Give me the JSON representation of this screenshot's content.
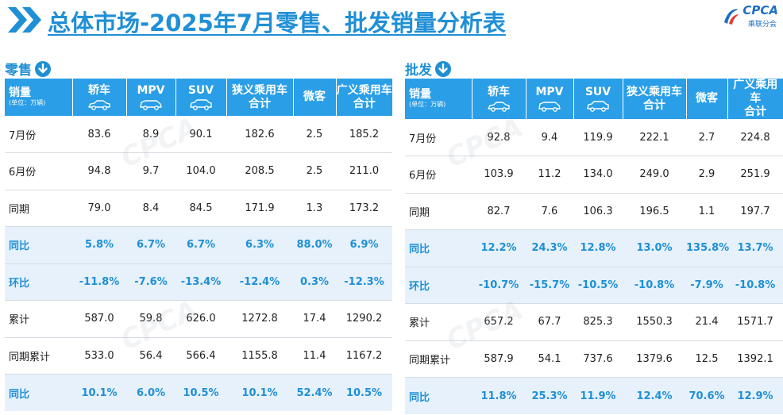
{
  "header": {
    "title": "总体市场-2025年7月零售、批发销量分析表",
    "logo_brand": "CPCA",
    "logo_sub": "乘联分会"
  },
  "colors": {
    "accent": "#1f8fd6",
    "header_bg": "#2a9ee6",
    "highlight_row_bg": "#e6f1fb"
  },
  "retail": {
    "label": "零售",
    "columns": [
      "销量",
      "轿车",
      "MPV",
      "SUV",
      "狭义乘用车合计",
      "微客",
      "广义乘用车合计"
    ],
    "col_lines": [
      [
        "销量"
      ],
      [
        "轿车"
      ],
      [
        "MPV"
      ],
      [
        "SUV"
      ],
      [
        "狭义乘用车",
        "合计"
      ],
      [
        "微客"
      ],
      [
        "广义乘用车",
        "合计"
      ]
    ],
    "unit": "(单位：万辆)",
    "rows": [
      {
        "label": "7月份",
        "values": [
          "83.6",
          "8.9",
          "90.1",
          "182.6",
          "2.5",
          "185.2"
        ],
        "highlight": false
      },
      {
        "label": "6月份",
        "values": [
          "94.8",
          "9.7",
          "104.0",
          "208.5",
          "2.5",
          "211.0"
        ],
        "highlight": false
      },
      {
        "label": "同期",
        "values": [
          "79.0",
          "8.4",
          "84.5",
          "171.9",
          "1.3",
          "173.2"
        ],
        "highlight": false
      },
      {
        "label": "同比",
        "values": [
          "5.8%",
          "6.7%",
          "6.7%",
          "6.3%",
          "88.0%",
          "6.9%"
        ],
        "highlight": true
      },
      {
        "label": "环比",
        "values": [
          "-11.8%",
          "-7.6%",
          "-13.4%",
          "-12.4%",
          "0.3%",
          "-12.3%"
        ],
        "highlight": true
      },
      {
        "label": "累计",
        "values": [
          "587.0",
          "59.8",
          "626.0",
          "1272.8",
          "17.4",
          "1290.2"
        ],
        "highlight": false
      },
      {
        "label": "同期累计",
        "values": [
          "533.0",
          "56.4",
          "566.4",
          "1155.8",
          "11.4",
          "1167.2"
        ],
        "highlight": false
      },
      {
        "label": "同比",
        "values": [
          "10.1%",
          "6.0%",
          "10.5%",
          "10.1%",
          "52.4%",
          "10.5%"
        ],
        "highlight": true
      }
    ]
  },
  "wholesale": {
    "label": "批发",
    "columns": [
      "销量",
      "轿车",
      "MPV",
      "SUV",
      "狭义乘用车合计",
      "微客",
      "广义乘用车合计"
    ],
    "col_lines": [
      [
        "销量"
      ],
      [
        "轿车"
      ],
      [
        "MPV"
      ],
      [
        "SUV"
      ],
      [
        "狭义乘用车",
        "合计"
      ],
      [
        "微客"
      ],
      [
        "广义乘用车",
        "合计"
      ]
    ],
    "unit": "(单位：万辆)",
    "rows": [
      {
        "label": "7月份",
        "values": [
          "92.8",
          "9.4",
          "119.9",
          "222.1",
          "2.7",
          "224.8"
        ],
        "highlight": false
      },
      {
        "label": "6月份",
        "values": [
          "103.9",
          "11.2",
          "134.0",
          "249.0",
          "2.9",
          "251.9"
        ],
        "highlight": false
      },
      {
        "label": "同期",
        "values": [
          "82.7",
          "7.6",
          "106.3",
          "196.5",
          "1.1",
          "197.7"
        ],
        "highlight": false
      },
      {
        "label": "同比",
        "values": [
          "12.2%",
          "24.3%",
          "12.8%",
          "13.0%",
          "135.8%",
          "13.7%"
        ],
        "highlight": true
      },
      {
        "label": "环比",
        "values": [
          "-10.7%",
          "-15.7%",
          "-10.5%",
          "-10.8%",
          "-7.9%",
          "-10.8%"
        ],
        "highlight": true
      },
      {
        "label": "累计",
        "values": [
          "657.2",
          "67.7",
          "825.3",
          "1550.3",
          "21.4",
          "1571.7"
        ],
        "highlight": false
      },
      {
        "label": "同期累计",
        "values": [
          "587.9",
          "54.1",
          "737.6",
          "1379.6",
          "12.5",
          "1392.1"
        ],
        "highlight": false
      },
      {
        "label": "同比",
        "values": [
          "11.8%",
          "25.3%",
          "11.9%",
          "12.4%",
          "70.6%",
          "12.9%"
        ],
        "highlight": true
      }
    ]
  }
}
